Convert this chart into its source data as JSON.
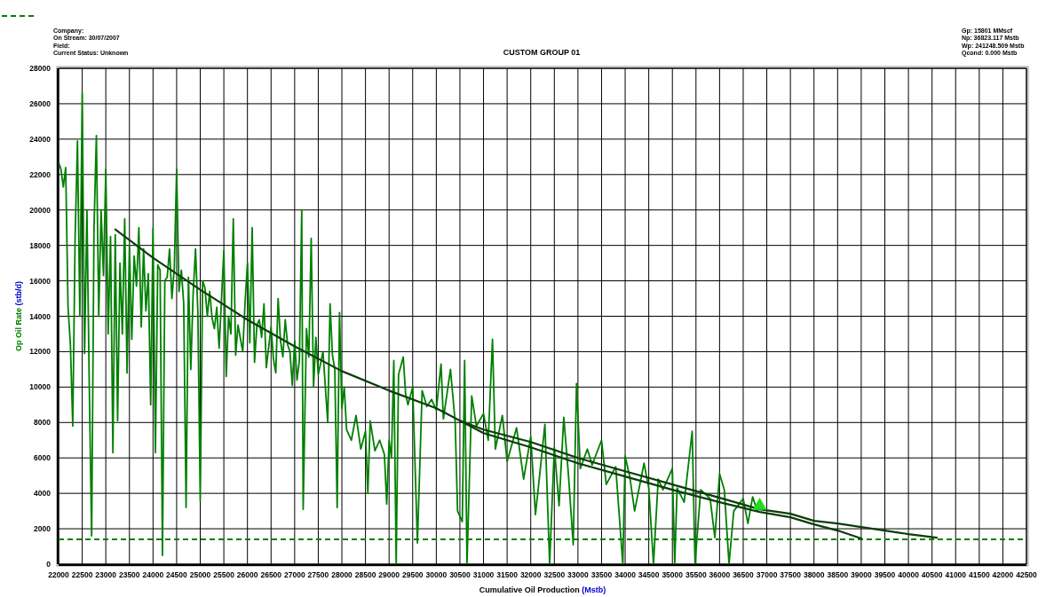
{
  "chart_data": {
    "type": "line",
    "title": "CUSTOM GROUP 01",
    "xlabel": "Cumulative Oil Production (Mstb)",
    "ylabel": "Op Oil Rate (stb/d)",
    "annotations": [
      "Company:",
      "On Stream: 30/07/2007",
      "Field:",
      "Current Status: Unknown",
      "Gp: 15801 MMscf",
      "Np: 36823.117 Mstb",
      "Wp: 241248.509 Mstb",
      "Qcond: 0.000 Mstb"
    ],
    "xlim": [
      22000,
      42500
    ],
    "xticks": [
      22000,
      22500,
      23000,
      23500,
      24000,
      24500,
      25000,
      25500,
      26000,
      26500,
      27000,
      27500,
      28000,
      28500,
      29000,
      29500,
      30000,
      30500,
      31000,
      31500,
      32000,
      32500,
      33000,
      33500,
      34000,
      34500,
      35000,
      35500,
      36000,
      36500,
      37000,
      37500,
      38000,
      38500,
      39000,
      39500,
      40000,
      40500,
      41000,
      41500,
      42000,
      42500
    ],
    "ylim": [
      0,
      28000
    ],
    "yticks": [
      0,
      2000,
      4000,
      6000,
      8000,
      10000,
      12000,
      14000,
      16000,
      18000,
      20000,
      22000,
      24000,
      26000,
      28000
    ],
    "grid": true,
    "marker": "none",
    "line_style": "solid",
    "ref_lines": [
      {
        "axis": "y",
        "value": 1400,
        "color": "#008000",
        "line_style": "dashed"
      }
    ],
    "series": [
      {
        "color": "#008000",
        "x": [
          22000,
          22050,
          22100,
          22150,
          22200,
          22250,
          22300,
          22350,
          22400,
          22450,
          22500,
          22550,
          22600,
          22650,
          22700,
          22750,
          22800,
          22850,
          22900,
          22950,
          23000,
          23050,
          23100,
          23150,
          23200,
          23250,
          23300,
          23350,
          23400,
          23450,
          23500,
          23550,
          23600,
          23650,
          23700,
          23750,
          23800,
          23850,
          23900,
          23950,
          24000,
          24050,
          24100,
          24150,
          24200,
          24250,
          24300,
          24350,
          24400,
          24450,
          24500,
          24550,
          24600,
          24650,
          24700,
          24750,
          24800,
          24850,
          24900,
          24950,
          25000,
          25050,
          25100,
          25150,
          25200,
          25250,
          25300,
          25350,
          25400,
          25500,
          25550,
          25600,
          25650,
          25700,
          25750,
          25800,
          25900,
          25950,
          26000,
          26050,
          26100,
          26150,
          26200,
          26250,
          26300,
          26350,
          26400,
          26500,
          26550,
          26600,
          26650,
          26700,
          26750,
          26800,
          26850,
          26900,
          26950,
          27000,
          27050,
          27100,
          27150,
          27180,
          27250,
          27300,
          27350,
          27400,
          27450,
          27500,
          27600,
          27700,
          27750,
          27800,
          27850,
          27900,
          27950,
          28000,
          28050,
          28100,
          28200,
          28300,
          28400,
          28500,
          28550,
          28600,
          28700,
          28800,
          28900,
          28950,
          29000,
          29050,
          29100,
          29150,
          29200,
          29300,
          29350,
          29400,
          29500,
          29600,
          29700,
          29800,
          29900,
          30000,
          30100,
          30150,
          30300,
          30400,
          30450,
          30550,
          30600,
          30650,
          30750,
          30850,
          31000,
          31100,
          31190,
          31250,
          31400,
          31500,
          31700,
          31850,
          32000,
          32100,
          32200,
          32300,
          32400,
          32500,
          32600,
          32700,
          32800,
          32900,
          32970,
          33050,
          33200,
          33300,
          33500,
          33600,
          33800,
          33950,
          34000,
          34100,
          34200,
          34400,
          34500,
          34600,
          34700,
          34800,
          35000,
          35050,
          35100,
          35250,
          35420,
          35480,
          35600,
          35800,
          35900,
          36000,
          36100,
          36200,
          36300,
          36500,
          36600,
          36700,
          36800
        ],
        "values": [
          22700,
          22300,
          21300,
          22400,
          14500,
          12400,
          7800,
          18500,
          23900,
          14000,
          26600,
          11900,
          20000,
          10000,
          1600,
          19000,
          24200,
          14000,
          20000,
          16300,
          22300,
          13000,
          18500,
          6300,
          18600,
          8100,
          17000,
          13000,
          19500,
          10800,
          18000,
          12700,
          17400,
          15700,
          19000,
          13400,
          17800,
          14300,
          16400,
          9000,
          19000,
          6300,
          16900,
          16600,
          500,
          16000,
          16200,
          17800,
          15000,
          16700,
          22300,
          15400,
          16600,
          14700,
          3200,
          16200,
          11000,
          15300,
          17800,
          14200,
          3600,
          16000,
          15600,
          14000,
          15400,
          13900,
          13300,
          14500,
          12200,
          17700,
          10600,
          14000,
          13000,
          19500,
          11800,
          13500,
          12000,
          14800,
          17000,
          12500,
          19000,
          11400,
          13500,
          13800,
          12800,
          14700,
          11100,
          13400,
          11600,
          10800,
          15000,
          12600,
          11700,
          13800,
          12400,
          12000,
          10100,
          12600,
          10400,
          11500,
          20000,
          3100,
          13300,
          11700,
          18400,
          10000,
          12800,
          10700,
          12000,
          8000,
          14700,
          11800,
          11000,
          3200,
          14200,
          8800,
          10000,
          7600,
          7000,
          8400,
          6500,
          7500,
          4000,
          8100,
          6400,
          7000,
          6200,
          3400,
          7000,
          6000,
          11500,
          0,
          10700,
          11700,
          9600,
          9000,
          10000,
          1200,
          9800,
          8900,
          9300,
          8700,
          11300,
          8200,
          11000,
          8000,
          3000,
          2400,
          11500,
          0,
          9500,
          7800,
          8500,
          7000,
          12700,
          6500,
          8400,
          5800,
          7700,
          4800,
          7200,
          2800,
          5300,
          7900,
          0,
          6600,
          3300,
          8300,
          5000,
          1100,
          10200,
          5400,
          6500,
          5600,
          7000,
          4500,
          5500,
          0,
          6100,
          4900,
          3000,
          5700,
          4300,
          0,
          4800,
          4200,
          5400,
          0,
          4300,
          3500,
          7500,
          0,
          4200,
          3700,
          1500,
          5100,
          4200,
          0,
          3000,
          3700,
          2300,
          3800,
          3000
        ]
      },
      {
        "color": "#0b3d0b",
        "x": [
          23200,
          24000,
          25000,
          26000,
          27000,
          28000,
          29000,
          30000,
          31000,
          32000,
          33000,
          34000,
          35000,
          36000,
          36850,
          37500,
          38000,
          38500,
          39000
        ],
        "values": [
          18900,
          17300,
          15500,
          13800,
          12300,
          10900,
          9800,
          8800,
          7400,
          6600,
          5700,
          4950,
          4200,
          3500,
          2950,
          2650,
          2250,
          1900,
          1450
        ]
      },
      {
        "color": "#0b3d0b",
        "x": [
          30500,
          31000,
          32000,
          33000,
          34000,
          35000,
          36000,
          36850,
          37500,
          38000,
          38500,
          39000,
          39500,
          40000,
          40600
        ],
        "values": [
          8100,
          7600,
          6900,
          6000,
          5250,
          4500,
          3750,
          3100,
          2850,
          2450,
          2300,
          2100,
          1900,
          1700,
          1500
        ]
      },
      {
        "type": "scatter",
        "marker": "triangle",
        "color": "#22dd22",
        "x": [
          36850
        ],
        "values": [
          3300
        ]
      }
    ]
  }
}
